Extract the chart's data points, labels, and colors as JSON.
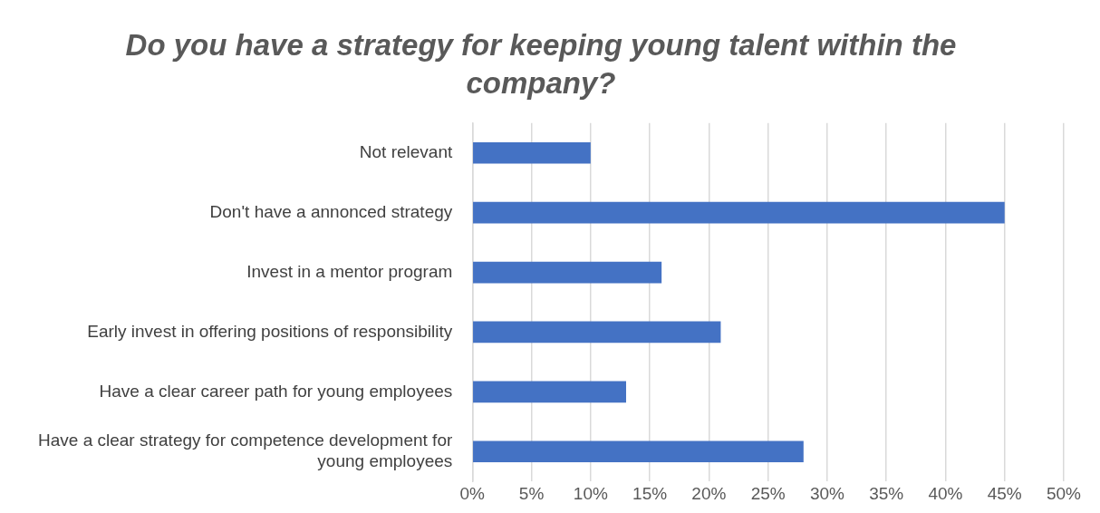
{
  "chart_data": {
    "type": "bar",
    "orientation": "horizontal",
    "title": "Do you have a strategy for keeping young talent within the company?",
    "categories": [
      "Not relevant",
      "Don't have a annonced strategy",
      "Invest in a mentor program",
      "Early invest in offering positions of responsibility",
      "Have a clear career path for young employees",
      "Have a clear strategy for competence development for young employees"
    ],
    "values": [
      10,
      45,
      16,
      21,
      13,
      28
    ],
    "color": "#4472c4",
    "xlim": [
      0,
      50
    ],
    "xticks": [
      {
        "value": 0,
        "label": "0%"
      },
      {
        "value": 5,
        "label": "5%"
      },
      {
        "value": 10,
        "label": "10%"
      },
      {
        "value": 15,
        "label": "15%"
      },
      {
        "value": 20,
        "label": "20%"
      },
      {
        "value": 25,
        "label": "25%"
      },
      {
        "value": 30,
        "label": "30%"
      },
      {
        "value": 35,
        "label": "35%"
      },
      {
        "value": 40,
        "label": "40%"
      },
      {
        "value": 45,
        "label": "45%"
      },
      {
        "value": 50,
        "label": "50%"
      }
    ],
    "grid": "x",
    "legend": false
  }
}
